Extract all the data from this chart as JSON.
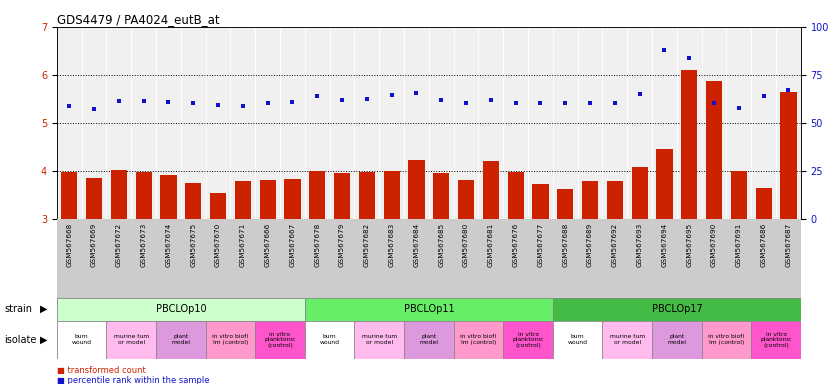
{
  "title": "GDS4479 / PA4024_eutB_at",
  "gsm_labels": [
    "GSM567668",
    "GSM567669",
    "GSM567672",
    "GSM567673",
    "GSM567674",
    "GSM567675",
    "GSM567670",
    "GSM567671",
    "GSM567666",
    "GSM567667",
    "GSM567678",
    "GSM567679",
    "GSM567682",
    "GSM567683",
    "GSM567684",
    "GSM567685",
    "GSM567680",
    "GSM567681",
    "GSM567676",
    "GSM567677",
    "GSM567688",
    "GSM567689",
    "GSM567692",
    "GSM567693",
    "GSM567694",
    "GSM567695",
    "GSM567690",
    "GSM567691",
    "GSM567686",
    "GSM567687"
  ],
  "bar_values": [
    3.98,
    3.86,
    4.02,
    3.98,
    3.92,
    3.75,
    3.53,
    3.78,
    3.82,
    3.83,
    4.0,
    3.95,
    3.98,
    4.0,
    4.22,
    3.95,
    3.8,
    4.21,
    3.97,
    3.72,
    3.63,
    3.78,
    3.78,
    4.08,
    4.46,
    6.1,
    5.88,
    4.0,
    3.64,
    5.65
  ],
  "dot_values_left_scale": [
    5.35,
    5.28,
    5.45,
    5.45,
    5.43,
    5.42,
    5.38,
    5.35,
    5.42,
    5.43,
    5.55,
    5.48,
    5.5,
    5.58,
    5.62,
    5.48,
    5.42,
    5.48,
    5.42,
    5.42,
    5.42,
    5.42,
    5.42,
    5.6,
    6.52,
    6.35,
    5.42,
    5.3,
    5.55,
    5.68
  ],
  "ylim_left": [
    3.0,
    7.0
  ],
  "ylim_right": [
    0,
    100
  ],
  "yticks_left": [
    3,
    4,
    5,
    6,
    7
  ],
  "yticks_right": [
    0,
    25,
    50,
    75,
    100
  ],
  "bar_color": "#cc2200",
  "dot_color": "#1111cc",
  "bg_color": "#f0f0f0",
  "dotted_line_values": [
    4.0,
    5.0,
    6.0
  ],
  "strains": [
    {
      "label": "PBCLOp10",
      "start": 0,
      "end": 10,
      "color": "#ccffcc"
    },
    {
      "label": "PBCLOp11",
      "start": 10,
      "end": 20,
      "color": "#66ee66"
    },
    {
      "label": "PBCLOp17",
      "start": 20,
      "end": 30,
      "color": "#44bb44"
    }
  ],
  "isolates": [
    {
      "label": "burn\nwound",
      "start": 0,
      "end": 2,
      "color": "#ffffff"
    },
    {
      "label": "murine tum\nor model",
      "start": 2,
      "end": 4,
      "color": "#ffbbee"
    },
    {
      "label": "plant\nmodel",
      "start": 4,
      "end": 6,
      "color": "#dd99dd"
    },
    {
      "label": "in vitro biofi\nlm (control)",
      "start": 6,
      "end": 8,
      "color": "#ff99cc"
    },
    {
      "label": "in vitro\nplanktonic\n(control)",
      "start": 8,
      "end": 10,
      "color": "#ff55cc"
    },
    {
      "label": "burn\nwound",
      "start": 10,
      "end": 12,
      "color": "#ffffff"
    },
    {
      "label": "murine tum\nor model",
      "start": 12,
      "end": 14,
      "color": "#ffbbee"
    },
    {
      "label": "plant\nmodel",
      "start": 14,
      "end": 16,
      "color": "#dd99dd"
    },
    {
      "label": "in vitro biofi\nlm (control)",
      "start": 16,
      "end": 18,
      "color": "#ff99cc"
    },
    {
      "label": "in vitro\nplanktonic\n(control)",
      "start": 18,
      "end": 20,
      "color": "#ff55cc"
    },
    {
      "label": "burn\nwound",
      "start": 20,
      "end": 22,
      "color": "#ffffff"
    },
    {
      "label": "murine tum\nor model",
      "start": 22,
      "end": 24,
      "color": "#ffbbee"
    },
    {
      "label": "plant\nmodel",
      "start": 24,
      "end": 26,
      "color": "#dd99dd"
    },
    {
      "label": "in vitro biofi\nlm (control)",
      "start": 26,
      "end": 28,
      "color": "#ff99cc"
    },
    {
      "label": "in vitro\nplanktonic\n(control)",
      "start": 28,
      "end": 30,
      "color": "#ff55cc"
    }
  ],
  "legend_items": [
    {
      "label": "transformed count",
      "color": "#cc2200"
    },
    {
      "label": "percentile rank within the sample",
      "color": "#1111cc"
    }
  ],
  "n_samples": 30
}
